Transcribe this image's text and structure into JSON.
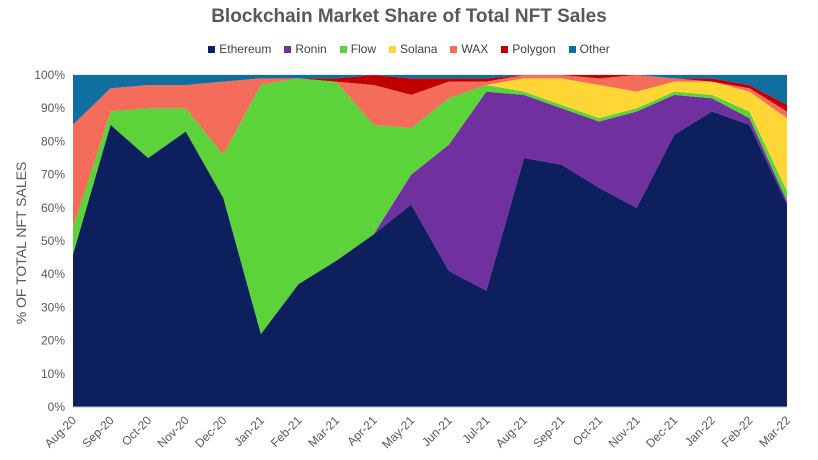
{
  "chart_data": {
    "type": "area",
    "stacked": true,
    "title": "Blockchain Market Share of Total NFT Sales",
    "xlabel": "",
    "ylabel": "% OF TOTAL NFT SALES",
    "ylim": [
      0,
      100
    ],
    "y_ticks": [
      "0%",
      "10%",
      "20%",
      "30%",
      "40%",
      "50%",
      "60%",
      "70%",
      "80%",
      "90%",
      "100%"
    ],
    "legend_position": "top",
    "categories": [
      "Aug-20",
      "Sep-20",
      "Oct-20",
      "Nov-20",
      "Dec-20",
      "Jan-21",
      "Feb-21",
      "Mar-21",
      "Apr-21",
      "May-21",
      "Jun-21",
      "Jul-21",
      "Aug-21",
      "Sep-21",
      "Oct-21",
      "Nov-21",
      "Dec-21",
      "Jan-22",
      "Feb-22",
      "Mar-22"
    ],
    "series": [
      {
        "name": "Ethereum",
        "color": "#0d1f5c",
        "values": [
          46,
          85,
          75,
          83,
          63,
          22,
          37,
          44,
          52,
          61,
          41,
          35,
          75,
          73,
          66,
          60,
          82,
          89,
          85,
          61
        ]
      },
      {
        "name": "Ronin",
        "color": "#7030a0",
        "values": [
          0,
          0,
          0,
          0,
          0,
          0,
          0,
          0,
          0,
          9,
          38,
          60,
          19,
          17,
          20,
          29,
          12,
          4,
          2,
          1
        ]
      },
      {
        "name": "Flow",
        "color": "#5dd33a",
        "values": [
          8,
          4,
          15,
          7,
          13,
          75,
          62,
          54,
          33,
          14,
          14,
          2,
          1,
          1,
          1,
          1,
          1,
          1,
          2,
          3
        ]
      },
      {
        "name": "Solana",
        "color": "#ffd634",
        "values": [
          0,
          0,
          0,
          0,
          0,
          0,
          0,
          0,
          0,
          0,
          0,
          0,
          4,
          8,
          10,
          5,
          3,
          4,
          6,
          22
        ]
      },
      {
        "name": "WAX",
        "color": "#f46c5a",
        "values": [
          31,
          7,
          7,
          7,
          22,
          2,
          0,
          0,
          12,
          10,
          5,
          1,
          1,
          1,
          2,
          5,
          1,
          0,
          1,
          2
        ]
      },
      {
        "name": "Polygon",
        "color": "#c00000",
        "values": [
          0,
          0,
          0,
          0,
          0,
          0,
          0,
          1,
          3,
          5,
          1,
          1,
          0,
          0,
          1,
          0,
          0,
          1,
          1,
          2
        ]
      },
      {
        "name": "Other",
        "color": "#0f6fa0",
        "values": [
          15,
          4,
          3,
          3,
          2,
          1,
          1,
          1,
          0,
          1,
          1,
          1,
          0,
          0,
          0,
          0,
          1,
          1,
          3,
          9
        ]
      }
    ]
  }
}
